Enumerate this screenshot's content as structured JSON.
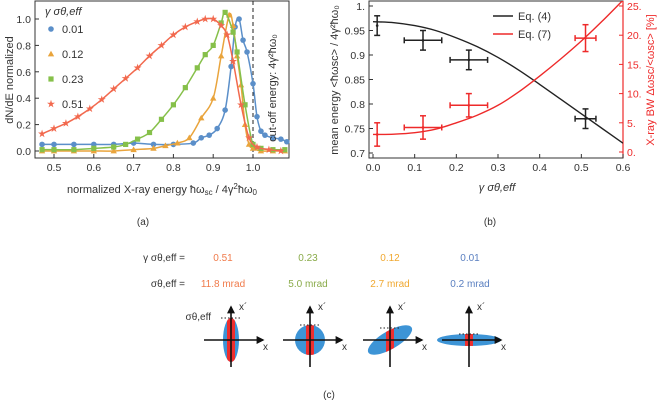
{
  "panel_labels": {
    "a": "(a)",
    "b": "(b)",
    "c": "(c)"
  },
  "chart_data": [
    {
      "type": "scatter",
      "panel": "a",
      "ylabel": "dN/dE normalized",
      "xlabel_parts": [
        "normalized X-ray energy ħω",
        "sc",
        " / 4γ",
        "2",
        "ħω",
        "0"
      ],
      "xlim": [
        0.45,
        1.09
      ],
      "ylim": [
        -0.05,
        1.14
      ],
      "xticks": [
        "0.5",
        "0.6",
        "0.7",
        "0.8",
        "0.9",
        "1.0"
      ],
      "xtick_values": [
        0.5,
        0.6,
        0.7,
        0.8,
        0.9,
        1.0
      ],
      "yticks": [
        "0.0",
        "0.2",
        "0.4",
        "0.6",
        "0.8",
        "1.0"
      ],
      "ytick_values": [
        0,
        0.2,
        0.4,
        0.6,
        0.8,
        1.0
      ],
      "legend_title": "γ σθ,eff",
      "legend_placement": "top-left",
      "cutoff": {
        "x": 1.0,
        "label": "cut-off energy: 4γ²ħω₀"
      },
      "series": [
        {
          "name": "0.01",
          "marker": "circle",
          "color": "#5b8fc9",
          "x": [
            0.47,
            0.5,
            0.55,
            0.6,
            0.65,
            0.7,
            0.75,
            0.8,
            0.85,
            0.87,
            0.89,
            0.91,
            0.93,
            0.945,
            0.955,
            0.965,
            0.975,
            0.985,
            1.0,
            1.01,
            1.02,
            1.03,
            1.05,
            1.07,
            1.085
          ],
          "y": [
            0.05,
            0.05,
            0.05,
            0.05,
            0.05,
            0.06,
            0.05,
            0.05,
            0.06,
            0.1,
            0.12,
            0.17,
            0.31,
            0.64,
            0.94,
            1.0,
            0.84,
            0.75,
            0.51,
            0.26,
            0.15,
            0.12,
            0.1,
            0.09,
            0.07
          ]
        },
        {
          "name": "0.12",
          "marker": "triangle",
          "color": "#e9a43c",
          "x": [
            0.47,
            0.5,
            0.55,
            0.6,
            0.65,
            0.7,
            0.75,
            0.78,
            0.81,
            0.84,
            0.87,
            0.9,
            0.92,
            0.94,
            0.95,
            0.96,
            0.97,
            0.98,
            0.99,
            1.0,
            1.02,
            1.05,
            1.08
          ],
          "y": [
            0.0,
            0.0,
            0.0,
            0.0,
            0.0,
            0.01,
            0.02,
            0.04,
            0.06,
            0.1,
            0.25,
            0.4,
            0.72,
            1.03,
            0.95,
            0.72,
            0.5,
            0.2,
            0.05,
            0.02,
            0.0,
            0.0,
            0.0
          ]
        },
        {
          "name": "0.23",
          "marker": "square",
          "color": "#86c04a",
          "x": [
            0.47,
            0.5,
            0.55,
            0.6,
            0.65,
            0.68,
            0.71,
            0.74,
            0.77,
            0.8,
            0.83,
            0.86,
            0.88,
            0.9,
            0.92,
            0.93,
            0.95,
            0.96,
            0.98,
            1.0,
            1.02,
            1.05,
            1.08
          ],
          "y": [
            0.01,
            0.01,
            0.01,
            0.02,
            0.03,
            0.05,
            0.09,
            0.14,
            0.24,
            0.35,
            0.48,
            0.63,
            0.73,
            0.8,
            0.97,
            1.05,
            0.9,
            0.75,
            0.35,
            0.05,
            0.02,
            0.01,
            0.01
          ]
        },
        {
          "name": "0.51",
          "marker": "star",
          "color": "#f2694e",
          "x": [
            0.47,
            0.5,
            0.53,
            0.56,
            0.59,
            0.62,
            0.65,
            0.68,
            0.71,
            0.74,
            0.77,
            0.8,
            0.83,
            0.86,
            0.88,
            0.9,
            0.92,
            0.935,
            0.95,
            0.97,
            0.99,
            1.01,
            1.04,
            1.07
          ],
          "y": [
            0.13,
            0.17,
            0.21,
            0.26,
            0.32,
            0.39,
            0.47,
            0.55,
            0.63,
            0.72,
            0.8,
            0.88,
            0.94,
            0.98,
            1.0,
            1.0,
            0.95,
            0.88,
            0.68,
            0.35,
            0.1,
            0.03,
            0.01,
            0.0
          ]
        }
      ]
    },
    {
      "type": "scatter",
      "panel": "b",
      "xlabel": "γ σθ,eff",
      "ylabel_left": "mean energy <ħωsc> / 4γ²ħω₀",
      "ylabel_right": "X-ray BW Δωsc/<ωsc> [%]",
      "xlim": [
        -0.01,
        0.6
      ],
      "ylim_left": [
        0.69,
        1.01
      ],
      "ylim_right": [
        -0.5,
        26
      ],
      "xticks": [
        "0.0",
        "0.1",
        "0.2",
        "0.3",
        "0.4",
        "0.5",
        "0.6"
      ],
      "xtick_values": [
        0,
        0.1,
        0.2,
        0.3,
        0.4,
        0.5,
        0.6
      ],
      "yticks_left": [
        "0.7",
        "0.75",
        "0.8",
        "0.85",
        "0.9",
        "0.95",
        "1."
      ],
      "ytick_left_values": [
        0.7,
        0.75,
        0.8,
        0.85,
        0.9,
        0.95,
        1.0
      ],
      "yticks_right": [
        "0.",
        "5.",
        "10.",
        "15.",
        "20.",
        "25."
      ],
      "ytick_right_values": [
        0,
        5,
        10,
        15,
        20,
        25
      ],
      "legend_placement": "top-center",
      "series": [
        {
          "name": "Eq. (4)",
          "color": "#222222",
          "axis": "left",
          "curve_x": [
            0,
            0.05,
            0.1,
            0.15,
            0.2,
            0.25,
            0.3,
            0.35,
            0.4,
            0.45,
            0.5,
            0.55,
            0.6
          ],
          "curve_y": [
            0.968,
            0.966,
            0.96,
            0.95,
            0.935,
            0.917,
            0.895,
            0.869,
            0.84,
            0.81,
            0.78,
            0.75,
            0.72
          ],
          "points": [
            {
              "x": 0.01,
              "y": 0.96,
              "xerr": 0.0,
              "yerr": 0.02
            },
            {
              "x": 0.12,
              "y": 0.93,
              "xerr": 0.045,
              "yerr": 0.02
            },
            {
              "x": 0.23,
              "y": 0.89,
              "xerr": 0.045,
              "yerr": 0.02
            },
            {
              "x": 0.51,
              "y": 0.77,
              "xerr": 0.025,
              "yerr": 0.02
            }
          ]
        },
        {
          "name": "Eq. (7)",
          "color": "#ee2a2a",
          "axis": "right",
          "curve_x": [
            0,
            0.05,
            0.1,
            0.15,
            0.2,
            0.25,
            0.3,
            0.35,
            0.4,
            0.45,
            0.5,
            0.55,
            0.6
          ],
          "curve_y": [
            3.0,
            3.05,
            3.3,
            3.9,
            5.0,
            6.3,
            8.0,
            10.3,
            13.0,
            15.9,
            19.0,
            22.4,
            26.0
          ],
          "points": [
            {
              "x": 0.01,
              "y": 3.0,
              "xerr": 0.0,
              "yerr": 2.0
            },
            {
              "x": 0.12,
              "y": 4.2,
              "xerr": 0.045,
              "yerr": 2.0
            },
            {
              "x": 0.23,
              "y": 8.0,
              "xerr": 0.045,
              "yerr": 2.0
            },
            {
              "x": 0.51,
              "y": 19.5,
              "xerr": 0.025,
              "yerr": 2.3
            }
          ]
        }
      ]
    }
  ],
  "panel_c": {
    "row1_label": "γ σθ,eff =",
    "row2_label": "σθ,eff =",
    "axis_x": "x",
    "axis_xp": "x´",
    "sigma_marker": "σθ,eff",
    "columns": [
      {
        "gamma_sigma": "0.51",
        "sigma": "11.8 mrad",
        "color": "#f07a4a"
      },
      {
        "gamma_sigma": "0.23",
        "sigma": "5.0 mrad",
        "color": "#8aab4a"
      },
      {
        "gamma_sigma": "0.12",
        "sigma": "2.7 mrad",
        "color": "#f0a830"
      },
      {
        "gamma_sigma": "0.01",
        "sigma": "0.2 mrad",
        "color": "#5a7fc0"
      }
    ],
    "beam_color": "#3d94d6",
    "slice_color": "#ee2e2e"
  }
}
